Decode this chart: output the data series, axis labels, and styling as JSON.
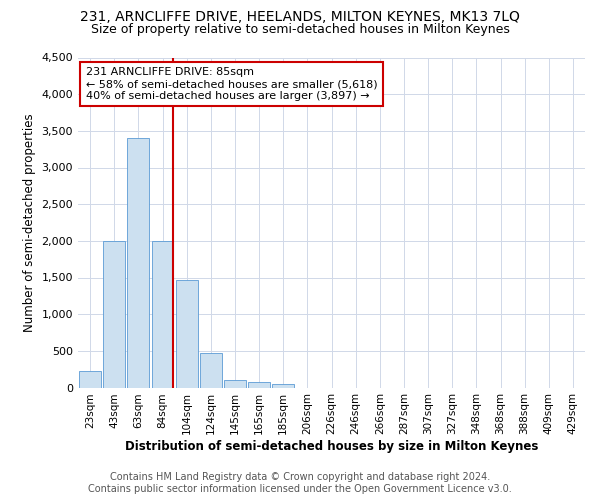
{
  "title": "231, ARNCLIFFE DRIVE, HEELANDS, MILTON KEYNES, MK13 7LQ",
  "subtitle": "Size of property relative to semi-detached houses in Milton Keynes",
  "xlabel": "Distribution of semi-detached houses by size in Milton Keynes",
  "ylabel": "Number of semi-detached properties",
  "footer_line1": "Contains HM Land Registry data © Crown copyright and database right 2024.",
  "footer_line2": "Contains public sector information licensed under the Open Government Licence v3.0.",
  "annotation_title": "231 ARNCLIFFE DRIVE: 85sqm",
  "annotation_line1": "← 58% of semi-detached houses are smaller (5,618)",
  "annotation_line2": "40% of semi-detached houses are larger (3,897) →",
  "bar_color": "#cce0f0",
  "bar_edge_color": "#5b9bd5",
  "vline_color": "#cc0000",
  "annotation_box_color": "#ffffff",
  "annotation_box_edge": "#cc0000",
  "categories": [
    "23sqm",
    "43sqm",
    "63sqm",
    "84sqm",
    "104sqm",
    "124sqm",
    "145sqm",
    "165sqm",
    "185sqm",
    "206sqm",
    "226sqm",
    "246sqm",
    "266sqm",
    "287sqm",
    "307sqm",
    "327sqm",
    "348sqm",
    "368sqm",
    "388sqm",
    "409sqm",
    "429sqm"
  ],
  "values": [
    230,
    2000,
    3400,
    2000,
    1460,
    470,
    100,
    70,
    50,
    0,
    0,
    0,
    0,
    0,
    0,
    0,
    0,
    0,
    0,
    0,
    0
  ],
  "ylim": [
    0,
    4500
  ],
  "yticks": [
    0,
    500,
    1000,
    1500,
    2000,
    2500,
    3000,
    3500,
    4000,
    4500
  ],
  "vline_bar_index": 3,
  "background_color": "#ffffff",
  "grid_color": "#d0d8e8"
}
